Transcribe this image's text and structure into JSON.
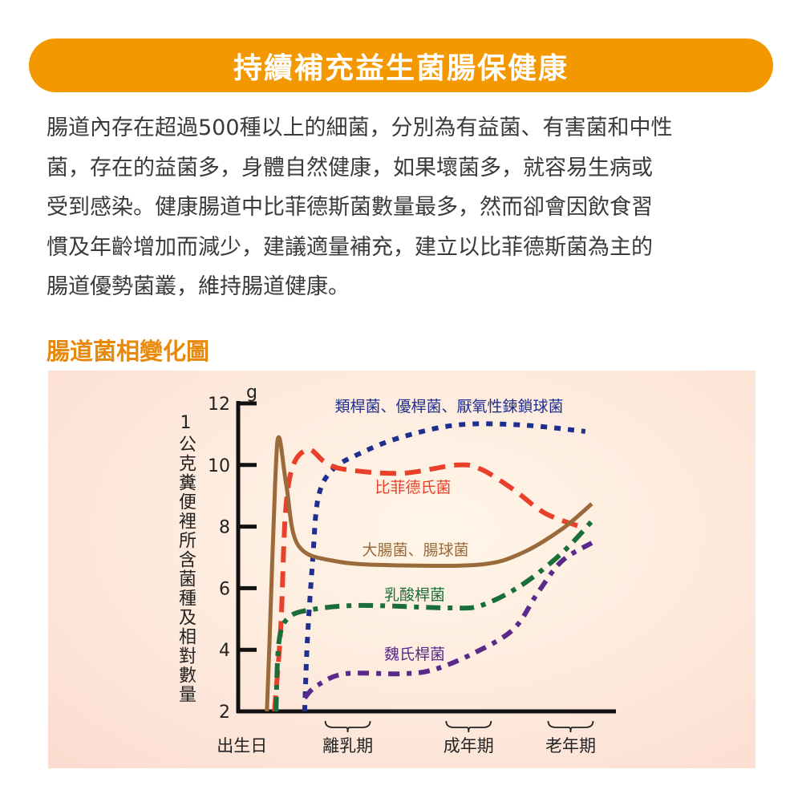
{
  "header": {
    "title": "持續補充益生菌腸保健康"
  },
  "intro": {
    "lines": [
      "腸道內存在超過500種以上的細菌，分別為有益菌、有害菌和中性",
      "菌，存在的益菌多，身體自然健康，如果壞菌多，就容易生病或",
      "受到感染。健康腸道中比菲德斯菌數量最多，然而卻會因飲食習",
      "慣及年齡增加而減少，建議適量補充，建立以比菲德斯菌為主的",
      "腸道優勢菌叢，維持腸道健康。"
    ]
  },
  "section_title": "腸道菌相變化圖",
  "colors": {
    "banner": "#f39800",
    "section": "#e8890c"
  },
  "chart_data": {
    "type": "line",
    "ylabel": "1公克糞便裡所含菌種及相對數量",
    "yunit": "g",
    "ylim": [
      2,
      12
    ],
    "yticks": [
      "12",
      "10",
      "8",
      "6",
      "4",
      "2"
    ],
    "xlim": [
      0,
      100
    ],
    "xcategories": [
      {
        "label": "出生日",
        "x": 1,
        "brace": false
      },
      {
        "label": "離乳期",
        "x": 29,
        "brace": true
      },
      {
        "label": "成年期",
        "x": 61,
        "brace": true
      },
      {
        "label": "老年期",
        "x": 88,
        "brace": true
      }
    ],
    "grid": false,
    "series": [
      {
        "name": "類桿菌、優桿菌、厭氧性鍊鎖球菌",
        "color": "#1e2f8f",
        "style": "dotted",
        "x": [
          17.6,
          18.3,
          19.7,
          21.2,
          25.1,
          32.5,
          43.1,
          58,
          74.9,
          91.9
        ],
        "y": [
          2,
          4.27,
          6.87,
          8.95,
          9.86,
          10.39,
          10.9,
          11.3,
          11.3,
          11.09
        ]
      },
      {
        "name": "比菲德氏菌",
        "color": "#e8402a",
        "style": "dashed",
        "x": [
          9.6,
          11.3,
          12.5,
          14.6,
          18.7,
          22.9,
          28.2,
          43.1,
          58,
          64.3,
          72.8,
          81.3,
          91.5
        ],
        "y": [
          2,
          4.79,
          8.43,
          10,
          10.5,
          10.1,
          9.86,
          9.73,
          10,
          9.86,
          9.21,
          8.43,
          7.96
        ]
      },
      {
        "name": "大腸菌、腸球菌",
        "color": "#9a6a3a",
        "style": "solid",
        "x": [
          7.6,
          8.3,
          9.8,
          10.8,
          12.8,
          15.9,
          26.1,
          43.1,
          64.3,
          74.9,
          85.6,
          93.6
        ],
        "y": [
          2,
          4.27,
          9.47,
          10.9,
          9.3,
          7.39,
          6.87,
          6.74,
          6.77,
          7.13,
          7.91,
          8.74
        ]
      },
      {
        "name": "乳酸桿菌",
        "color": "#1a6e3a",
        "style": "dashdot",
        "x": [
          10,
          10.8,
          13.4,
          19.7,
          32.5,
          55.8,
          64.3,
          74.9,
          85.6,
          93.6
        ],
        "y": [
          2,
          4.27,
          5.05,
          5.31,
          5.44,
          5.36,
          5.44,
          6.09,
          7.13,
          8.17
        ]
      },
      {
        "name": "魏氏桿菌",
        "color": "#5a2a8a",
        "style": "dashdot2",
        "x": [
          17.6,
          20.8,
          28.2,
          43.1,
          51.6,
          62.2,
          72.8,
          79.2,
          85.6,
          93.6
        ],
        "y": [
          2.44,
          2.83,
          3.22,
          3.22,
          3.35,
          3.88,
          4.66,
          5.83,
          6.87,
          7.47
        ]
      }
    ]
  }
}
